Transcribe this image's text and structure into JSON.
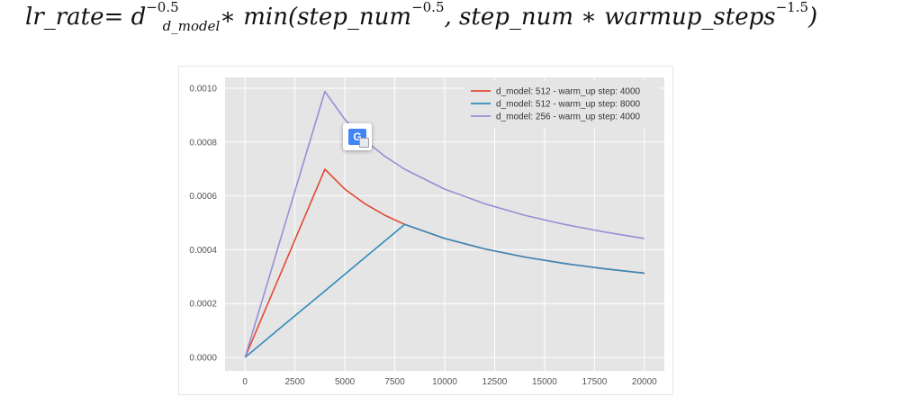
{
  "formula": {
    "lhs": "lr_rate",
    "eq": " = d",
    "d_exp": "−0.5",
    "d_sub": "d_model",
    "mid": " ∗ min(step_num",
    "step_exp": "−0.5",
    "mid2": ", step_num ∗ warmup_steps",
    "warm_exp": "−1.5",
    "close": ")"
  },
  "translate_icon": "google-translate-icon",
  "chart_data": {
    "type": "line",
    "title": "",
    "xlabel": "",
    "ylabel": "",
    "xlim": [
      -1000,
      21000
    ],
    "ylim": [
      -5e-05,
      0.00104
    ],
    "x_ticks": [
      0,
      2500,
      5000,
      7500,
      10000,
      12500,
      15000,
      17500,
      20000
    ],
    "x_tick_labels": [
      "0",
      "2500",
      "5000",
      "7500",
      "10000",
      "12500",
      "15000",
      "17500",
      "20000"
    ],
    "y_ticks": [
      0,
      0.0002,
      0.0004,
      0.0006,
      0.0008,
      0.001
    ],
    "y_tick_labels": [
      "0.0000",
      "0.0002",
      "0.0004",
      "0.0006",
      "0.0008",
      "0.0010"
    ],
    "grid": true,
    "legend_position": "top-right",
    "background": "#e5e5e5",
    "series": [
      {
        "name": "d_model: 512 - warm_up step: 4000",
        "color": "#e24a33",
        "x": [
          1,
          1000,
          2000,
          3000,
          4000,
          5000,
          6000,
          7000,
          8000,
          10000,
          12000,
          14000,
          16000,
          18000,
          20000
        ],
        "y": [
          0,
          0.000175,
          0.000349,
          0.000524,
          0.000699,
          0.000625,
          0.000571,
          0.000528,
          0.000494,
          0.000442,
          0.000403,
          0.000373,
          0.000349,
          0.000329,
          0.000313
        ]
      },
      {
        "name": "d_model: 512 - warm_up step: 8000",
        "color": "#348abd",
        "x": [
          1,
          2000,
          4000,
          6000,
          8000,
          10000,
          12000,
          14000,
          16000,
          18000,
          20000
        ],
        "y": [
          0,
          0.000124,
          0.000247,
          0.000371,
          0.000494,
          0.000442,
          0.000403,
          0.000373,
          0.000349,
          0.000329,
          0.000313
        ]
      },
      {
        "name": "d_model: 256 - warm_up step: 4000",
        "color": "#988ed5",
        "x": [
          1,
          1000,
          2000,
          3000,
          4000,
          5000,
          6000,
          7000,
          8000,
          10000,
          12000,
          14000,
          16000,
          18000,
          20000
        ],
        "y": [
          0,
          0.000247,
          0.000494,
          0.000741,
          0.000988,
          0.000884,
          0.000807,
          0.000747,
          0.000699,
          0.000625,
          0.000571,
          0.000528,
          0.000494,
          0.000466,
          0.000442
        ]
      }
    ]
  }
}
